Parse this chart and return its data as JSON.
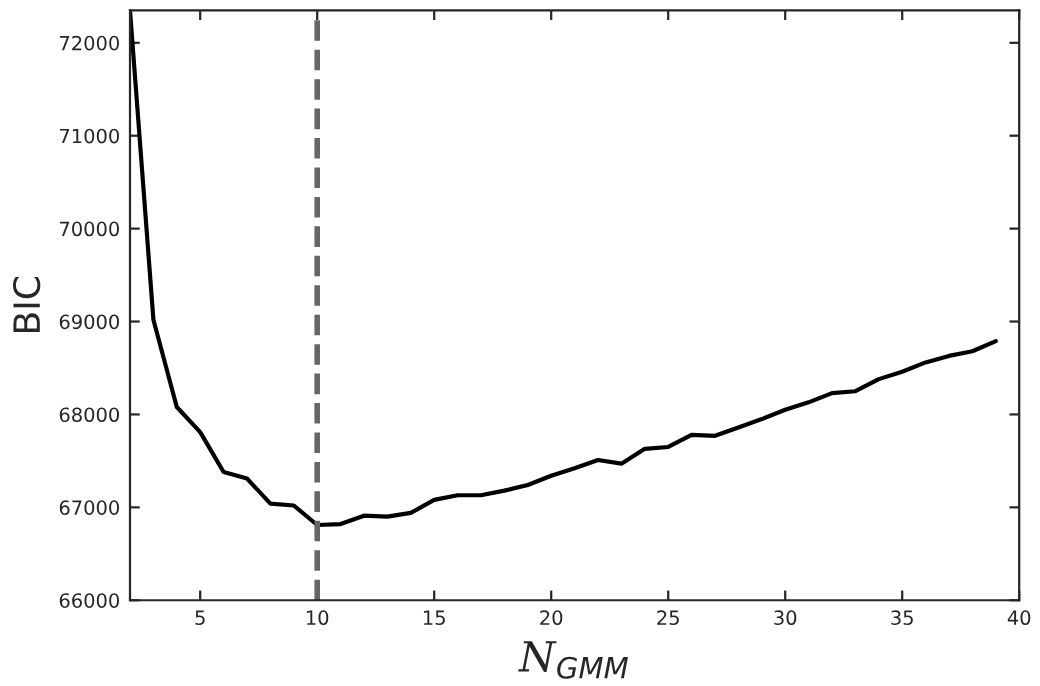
{
  "chart_data": {
    "type": "line",
    "xlabel": "N$_{GMM}$",
    "ylabel": "BIC",
    "x": [
      2,
      3,
      4,
      5,
      6,
      7,
      8,
      9,
      10,
      11,
      12,
      13,
      14,
      15,
      16,
      17,
      18,
      19,
      20,
      21,
      22,
      23,
      24,
      25,
      26,
      27,
      28,
      29,
      30,
      31,
      32,
      33,
      34,
      35,
      36,
      37,
      38,
      39
    ],
    "series": [
      {
        "color": "#000000",
        "values": [
          72350,
          69020,
          68080,
          67810,
          67380,
          67310,
          67040,
          67020,
          66810,
          66820,
          66910,
          66900,
          66940,
          67080,
          67130,
          67130,
          67180,
          67240,
          67340,
          67420,
          67510,
          67470,
          67630,
          67650,
          67780,
          67770,
          67860,
          67950,
          68050,
          68130,
          68230,
          68250,
          68380,
          68460,
          68560,
          68630,
          68680,
          68790
        ]
      }
    ],
    "xlim": [
      2,
      40
    ],
    "xticks": [
      5,
      10,
      15,
      20,
      25,
      30,
      35,
      40
    ],
    "ylim": [
      66000,
      72350
    ],
    "yticks": [
      66000,
      67000,
      68000,
      69000,
      70000,
      71000,
      72000
    ],
    "ref_lines": [
      {
        "axis": "x",
        "value": 10,
        "color": "#666666",
        "line_style": "dashed"
      }
    ],
    "grid": false,
    "legend": false,
    "marker": "none",
    "line_style": "solid"
  }
}
